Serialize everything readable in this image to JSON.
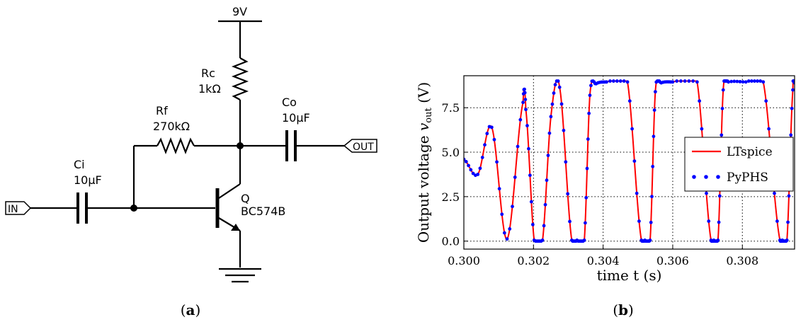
{
  "schematic": {
    "supply_label": "9V",
    "rc_name": "Rc",
    "rc_value": "1kΩ",
    "rf_name": "Rf",
    "rf_value": "270kΩ",
    "ci_name": "Ci",
    "ci_value": "10µF",
    "co_name": "Co",
    "co_value": "10µF",
    "q_name": "Q",
    "q_value": "BC574B",
    "in_label": "IN",
    "out_label": "OUT",
    "caption_open": "(",
    "caption_letter": "a",
    "caption_close": ")"
  },
  "plot": {
    "caption_open": "(",
    "caption_letter": "b",
    "caption_close": ")"
  },
  "chart_data": {
    "type": "line",
    "title": "",
    "xlabel": "time t (s)",
    "ylabel": "Output voltage v_out (V)",
    "ylabel_main": "Output voltage ",
    "ylabel_var": "v",
    "ylabel_sub": "out",
    "ylabel_unit": " (V)",
    "xlim": [
      0.3,
      0.3095
    ],
    "ylim": [
      -0.45,
      9.3
    ],
    "x_ticks": [
      0.3,
      0.302,
      0.304,
      0.306,
      0.308
    ],
    "x_tick_labels": [
      "0.300",
      "0.302",
      "0.304",
      "0.306",
      "0.308"
    ],
    "y_ticks": [
      0.0,
      2.5,
      5.0,
      7.5
    ],
    "y_tick_labels": [
      "0.0",
      "2.5",
      "5.0",
      "7.5"
    ],
    "grid": true,
    "legend_position": "center-right",
    "series": [
      {
        "name": "LTspice",
        "style": "line",
        "color": "#ff0000",
        "x": [
          0.3,
          0.3004,
          0.3008,
          0.30124,
          0.3017,
          0.30178,
          0.30202,
          0.30226,
          0.3025,
          0.30275,
          0.3031,
          0.30325,
          0.30346,
          0.30362,
          0.3038,
          0.3041,
          0.3047,
          0.3051,
          0.3052,
          0.30535,
          0.3055,
          0.30567,
          0.306,
          0.3067,
          0.3071,
          0.30718,
          0.3073,
          0.30745,
          0.3076,
          0.3081,
          0.3086,
          0.30908,
          0.30915,
          0.30928,
          0.30945,
          0.3095
        ],
        "y": [
          4.6,
          3.75,
          6.4,
          0.12,
          7.8,
          7.4,
          0.05,
          0.05,
          7.0,
          8.65,
          0.05,
          0.05,
          0.05,
          8.2,
          8.85,
          8.95,
          8.95,
          0.05,
          0.05,
          0.05,
          8.4,
          8.9,
          8.95,
          8.95,
          0.05,
          0.05,
          0.05,
          8.5,
          8.95,
          8.95,
          8.95,
          0.05,
          0.05,
          0.05,
          8.5,
          8.9
        ]
      },
      {
        "name": "PyPHS",
        "style": "dots",
        "color": "#0000ff",
        "x": [
          0.3,
          0.3004,
          0.3008,
          0.30124,
          0.3017,
          0.30178,
          0.30202,
          0.30226,
          0.3025,
          0.30275,
          0.3031,
          0.30325,
          0.30346,
          0.30362,
          0.3038,
          0.3041,
          0.3047,
          0.3051,
          0.3052,
          0.30535,
          0.3055,
          0.30567,
          0.306,
          0.3067,
          0.3071,
          0.30718,
          0.3073,
          0.30745,
          0.3076,
          0.3081,
          0.3086,
          0.30908,
          0.30915,
          0.30928,
          0.30945,
          0.3095
        ],
        "y": [
          4.6,
          3.75,
          6.4,
          0.12,
          7.8,
          7.4,
          0.05,
          0.05,
          7.0,
          8.65,
          0.05,
          0.05,
          0.05,
          8.2,
          8.85,
          8.95,
          8.95,
          0.05,
          0.05,
          0.05,
          8.4,
          8.9,
          8.95,
          8.95,
          0.05,
          0.05,
          0.05,
          8.5,
          8.95,
          8.95,
          8.95,
          0.05,
          0.05,
          0.05,
          8.5,
          8.9
        ]
      }
    ]
  },
  "colors": {
    "ltspice": "#ff0000",
    "pyphs": "#0000ff"
  }
}
